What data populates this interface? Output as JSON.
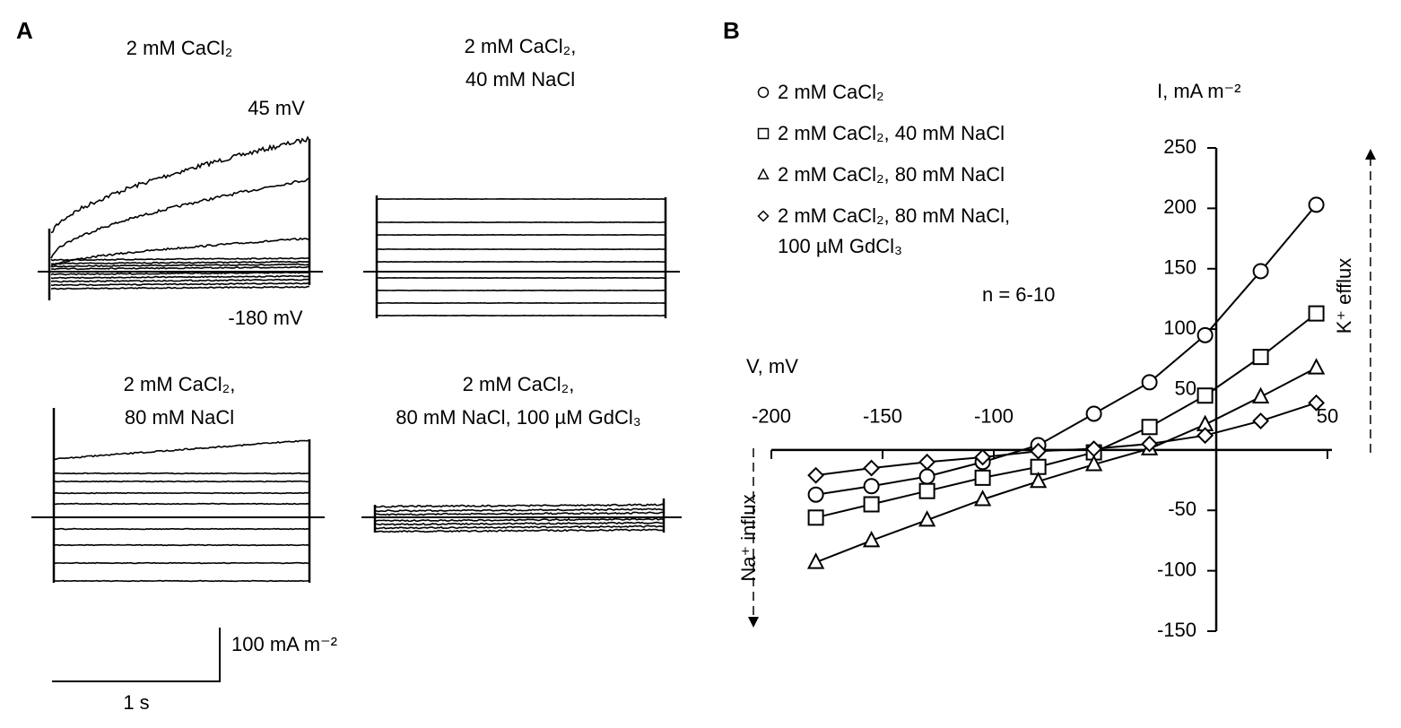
{
  "panel_a": {
    "label": "A",
    "panels": [
      {
        "title_lines": [
          "2 mM CaCl₂"
        ]
      },
      {
        "title_lines": [
          "2 mM CaCl₂,",
          "40 mM NaCl"
        ]
      },
      {
        "title_lines": [
          "2 mM CaCl₂,",
          "80 mM NaCl"
        ]
      },
      {
        "title_lines": [
          "2 mM CaCl₂,",
          "80 mM NaCl, 100 µM GdCl₃"
        ]
      }
    ],
    "top_voltage": "45 mV",
    "bottom_voltage": "-180 mV",
    "scale_current": "100 mA m⁻²",
    "scale_time": "1 s"
  },
  "chart_data": {
    "type": "line",
    "panel_label": "B",
    "xlabel": "V, mV",
    "ylabel": "I, mA m⁻²",
    "annotations": [
      "n = 6-10",
      "K⁺ efflux",
      "Na⁺ influx"
    ],
    "x": [
      -180,
      -155,
      -130,
      -105,
      -80,
      -55,
      -30,
      -5,
      20,
      45
    ],
    "series": [
      {
        "name": "2 mM CaCl₂",
        "marker": "circle",
        "color": "#000000",
        "values": [
          -37,
          -30,
          -22,
          -10,
          4,
          30,
          56,
          95,
          148,
          203
        ]
      },
      {
        "name": "2 mM CaCl₂, 40 mM NaCl",
        "marker": "square",
        "color": "#000000",
        "values": [
          -56,
          -45,
          -34,
          -23,
          -14,
          -2,
          19,
          45,
          77,
          113
        ]
      },
      {
        "name": "2 mM CaCl₂, 80 mM NaCl",
        "marker": "triangle",
        "color": "#000000",
        "values": [
          -93,
          -75,
          -58,
          -41,
          -26,
          -12,
          1,
          21,
          44,
          68
        ]
      },
      {
        "name": "2 mM CaCl₂, 80 mM NaCl, 100 µM GdCl₃",
        "marker": "diamond",
        "color": "#000000",
        "values": [
          -21,
          -15,
          -10,
          -6,
          -1,
          1,
          5,
          12,
          24,
          39
        ]
      }
    ],
    "xlim": [
      -200,
      50
    ],
    "xticks": [
      -200,
      -150,
      -100,
      50
    ],
    "ylim": [
      -150,
      250
    ],
    "yticks": [
      -150,
      -100,
      -50,
      50,
      100,
      150,
      200,
      250
    ],
    "legend": "upper left"
  }
}
